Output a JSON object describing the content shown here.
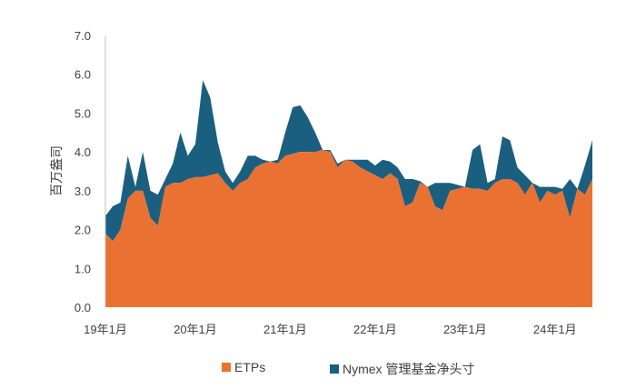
{
  "chart_data": {
    "type": "area",
    "stacked": true,
    "title": "",
    "xlabel": "",
    "ylabel": "百万盎司",
    "ylim": [
      0,
      7
    ],
    "yticks": [
      "0.0",
      "1.0",
      "2.0",
      "3.0",
      "4.0",
      "5.0",
      "6.0",
      "7.0"
    ],
    "xticks": [
      "19年1月",
      "20年1月",
      "21年1月",
      "22年1月",
      "23年1月",
      "24年1月"
    ],
    "grid": false,
    "legend_position": "bottom",
    "colors": {
      "ETPs": "#E97132",
      "Nymex": "#1B5F80"
    },
    "x": [
      "2019-01",
      "2019-02",
      "2019-03",
      "2019-04",
      "2019-05",
      "2019-06",
      "2019-07",
      "2019-08",
      "2019-09",
      "2019-10",
      "2019-11",
      "2019-12",
      "2020-01",
      "2020-02",
      "2020-03",
      "2020-04",
      "2020-05",
      "2020-06",
      "2020-07",
      "2020-08",
      "2020-09",
      "2020-10",
      "2020-11",
      "2020-12",
      "2021-01",
      "2021-02",
      "2021-03",
      "2021-04",
      "2021-05",
      "2021-06",
      "2021-07",
      "2021-08",
      "2021-09",
      "2021-10",
      "2021-11",
      "2021-12",
      "2022-01",
      "2022-02",
      "2022-03",
      "2022-04",
      "2022-05",
      "2022-06",
      "2022-07",
      "2022-08",
      "2022-09",
      "2022-10",
      "2022-11",
      "2022-12",
      "2023-01",
      "2023-02",
      "2023-03",
      "2023-04",
      "2023-05",
      "2023-06",
      "2023-07",
      "2023-08",
      "2023-09",
      "2023-10",
      "2023-11",
      "2023-12",
      "2024-01",
      "2024-02",
      "2024-03",
      "2024-04",
      "2024-05",
      "2024-06"
    ],
    "series": [
      {
        "name": "ETPs",
        "values": [
          1.9,
          1.7,
          2.0,
          2.8,
          3.0,
          3.0,
          2.3,
          2.1,
          3.1,
          3.2,
          3.2,
          3.3,
          3.35,
          3.35,
          3.4,
          3.45,
          3.2,
          3.0,
          3.2,
          3.3,
          3.6,
          3.7,
          3.75,
          3.7,
          3.9,
          3.95,
          4.0,
          4.0,
          4.0,
          4.05,
          4.0,
          3.6,
          3.8,
          3.75,
          3.6,
          3.5,
          3.4,
          3.3,
          3.45,
          3.3,
          2.6,
          2.7,
          3.2,
          3.1,
          2.6,
          2.5,
          3.0,
          3.05,
          3.1,
          3.05,
          3.05,
          3.0,
          3.2,
          3.3,
          3.3,
          3.2,
          2.9,
          3.2,
          2.7,
          3.0,
          2.9,
          3.0,
          2.3,
          3.05,
          2.9,
          3.3
        ]
      },
      {
        "name": "Nymex 管理基金净头寸",
        "values": [
          0.45,
          0.9,
          0.7,
          1.1,
          0.1,
          1.0,
          0.7,
          0.8,
          0.2,
          0.5,
          1.3,
          0.6,
          0.85,
          2.5,
          2.0,
          0.8,
          0.3,
          0.2,
          0.3,
          0.6,
          0.3,
          0.1,
          0.0,
          0.1,
          0.6,
          1.2,
          1.2,
          0.9,
          0.5,
          0.0,
          0.05,
          0.1,
          0.0,
          0.05,
          0.2,
          0.3,
          0.25,
          0.5,
          0.3,
          0.3,
          0.7,
          0.6,
          0.05,
          0.0,
          0.6,
          0.7,
          0.2,
          0.1,
          0.0,
          1.0,
          1.15,
          0.2,
          0.1,
          1.1,
          1.0,
          0.4,
          0.5,
          0.0,
          0.4,
          0.1,
          0.2,
          0.05,
          1.0,
          0.0,
          0.75,
          1.0
        ]
      }
    ]
  },
  "legend": {
    "items": [
      {
        "label": "ETPs",
        "color": "#E97132"
      },
      {
        "label": "Nymex 管理基金净头寸",
        "color": "#1B5F80"
      }
    ]
  }
}
